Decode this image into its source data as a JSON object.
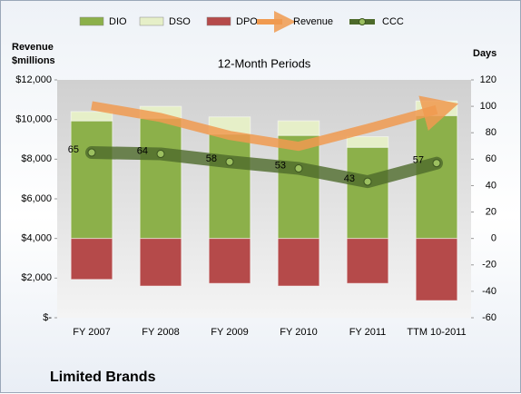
{
  "chart_data": {
    "type": "bar",
    "title": "12-Month Periods",
    "ylabel": "Revenue $millions",
    "y2label": "Days",
    "footer": "Limited Brands",
    "categories": [
      "FY 2007",
      "FY 2008",
      "FY 2009",
      "FY 2010",
      "FY 2011",
      "TTM 10-2011"
    ],
    "ylim": [
      0,
      12000
    ],
    "yticks": [
      {
        "value": 0,
        "label": "$-"
      },
      {
        "value": 2000,
        "label": "$2,000"
      },
      {
        "value": 4000,
        "label": "$4,000"
      },
      {
        "value": 6000,
        "label": "$6,000"
      },
      {
        "value": 8000,
        "label": "$8,000"
      },
      {
        "value": 10000,
        "label": "$10,000"
      },
      {
        "value": 12000,
        "label": "$12,000"
      }
    ],
    "y2lim": [
      -60,
      120
    ],
    "y2ticks": [
      -60,
      -40,
      -20,
      0,
      20,
      40,
      60,
      80,
      100,
      120
    ],
    "grid": false,
    "series": [
      {
        "name": "DIO",
        "type": "bar",
        "axis": "y2",
        "color": "#8cb04a",
        "values": [
          89,
          91,
          79,
          78,
          69,
          93
        ]
      },
      {
        "name": "DSO",
        "type": "bar",
        "axis": "y2",
        "color": "#e6efc8",
        "values": [
          7,
          9,
          13,
          11,
          8,
          11
        ]
      },
      {
        "name": "DPO",
        "type": "bar",
        "axis": "y2",
        "color": "#b54a4a",
        "values": [
          -31,
          -36,
          -34,
          -36,
          -34,
          -47
        ]
      },
      {
        "name": "Revenue",
        "type": "line",
        "axis": "y",
        "color": "#f09a50",
        "values": [
          10700,
          10100,
          9200,
          8650,
          9550,
          10500
        ]
      },
      {
        "name": "CCC",
        "type": "line",
        "axis": "y2",
        "color": "#4d6a2a",
        "values": [
          65,
          64,
          58,
          53,
          43,
          57
        ]
      }
    ]
  }
}
